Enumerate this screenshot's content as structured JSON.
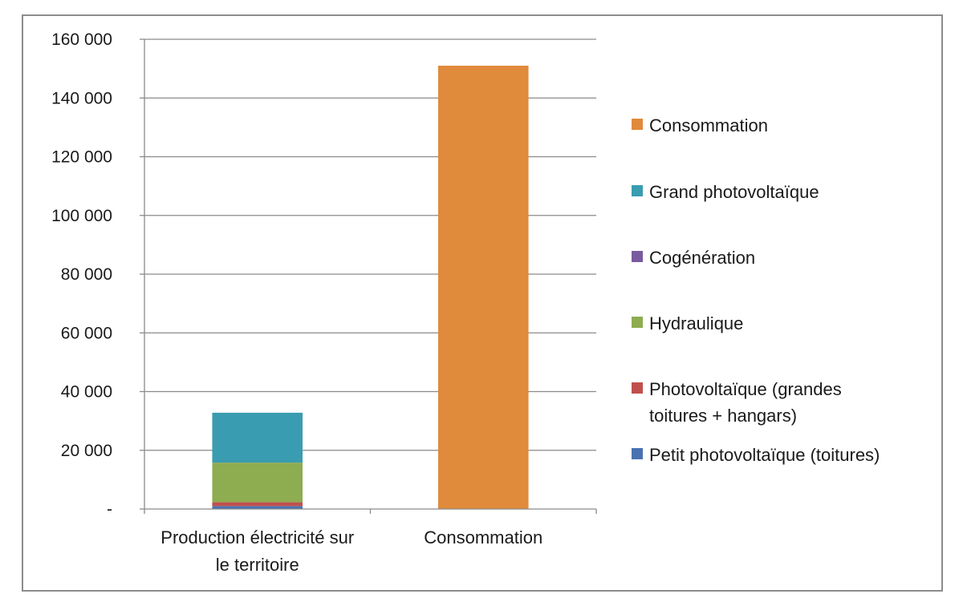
{
  "chart_data": {
    "type": "bar",
    "stacked": true,
    "categories": [
      "Production électricité sur le territoire",
      "Consommation"
    ],
    "category_label_lines": [
      [
        "Production électricité sur",
        "le territoire"
      ],
      [
        "Consommation"
      ]
    ],
    "series": [
      {
        "name": "Petit photovoltaïque (toitures)",
        "color": "#4a72b0",
        "values": [
          1000,
          0
        ]
      },
      {
        "name": "Photovoltaïque (grandes toitures + hangars)",
        "color": "#c0504d",
        "values": [
          1300,
          0
        ]
      },
      {
        "name": "Hydraulique",
        "color": "#8eac50",
        "values": [
          13500,
          0
        ]
      },
      {
        "name": "Cogénération",
        "color": "#7a5a9e",
        "values": [
          0,
          0
        ]
      },
      {
        "name": "Grand photovoltaïque",
        "color": "#3a9cb0",
        "values": [
          17000,
          0
        ]
      },
      {
        "name": "Consommation",
        "color": "#e08a3c",
        "values": [
          0,
          151000
        ]
      }
    ],
    "legend": [
      {
        "lines": [
          "Consommation"
        ],
        "color": "#e08a3c"
      },
      {
        "lines": [
          "Grand photovoltaïque"
        ],
        "color": "#3a9cb0"
      },
      {
        "lines": [
          "Cogénération"
        ],
        "color": "#7a5a9e"
      },
      {
        "lines": [
          "Hydraulique"
        ],
        "color": "#8eac50"
      },
      {
        "lines": [
          "Photovoltaïque (grandes",
          "toitures + hangars)"
        ],
        "color": "#c0504d"
      },
      {
        "lines": [
          "Petit photovoltaïque (toitures)"
        ],
        "color": "#4a72b0"
      }
    ],
    "yticks": [
      "-",
      "20 000",
      "40 000",
      "60 000",
      "80 000",
      "100 000",
      "120 000",
      "140 000",
      "160 000"
    ],
    "ylim": [
      0,
      160000
    ],
    "grid": true,
    "legend_position": "right"
  }
}
